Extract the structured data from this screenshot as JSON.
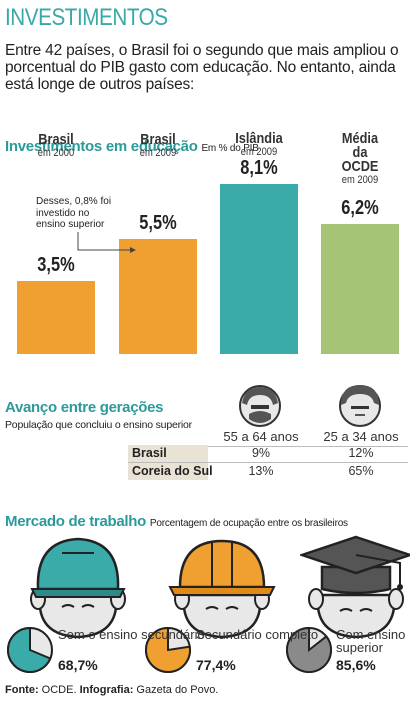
{
  "title": "INVESTIMENTOS",
  "intro": "Entre 42 países, o Brasil foi o segundo que mais ampliou o porcentual do PIB gasto com educação. No entanto, ainda está longe de outros países:",
  "invest": {
    "title": "Investimentos em educação",
    "subtitle": "Em % do PIB",
    "note": "Desses, 0,8% foi investido no ensino superior",
    "colors": [
      "#f0a030",
      "#f0a030",
      "#3aaba8",
      "#a6c476"
    ]
  },
  "chart_data": [
    {
      "type": "bar",
      "title": "Investimentos em educação",
      "subtitle": "Em % do PIB",
      "categories": [
        {
          "name": "Brasil",
          "sub": "em 2000"
        },
        {
          "name": "Brasil",
          "sub": "em 2009"
        },
        {
          "name": "Islândia",
          "sub": "em 2009"
        },
        {
          "name": "Média da OCDE",
          "sub": "em 2009"
        }
      ],
      "values": [
        3.5,
        5.5,
        8.1,
        6.2
      ],
      "labels": [
        "3,5%",
        "5,5%",
        "8,1%",
        "6,2%"
      ],
      "ylim": [
        0,
        8.1
      ]
    },
    {
      "type": "table",
      "title": "Avanço entre gerações",
      "subtitle": "População que concluiu o ensino superior",
      "columns": [
        "55 a 64 anos",
        "25 a 34 anos"
      ],
      "rows": [
        {
          "name": "Brasil",
          "values": [
            "9%",
            "12%"
          ]
        },
        {
          "name": "Coreia do Sul",
          "values": [
            "13%",
            "65%"
          ]
        }
      ]
    },
    {
      "type": "pie",
      "title": "Mercado de trabalho",
      "subtitle": "Porcentagem de ocupação entre os brasileiros",
      "items": [
        {
          "label": "Sem o ensino secundário",
          "value": 68.7,
          "text": "68,7%",
          "color": "#3aaba8"
        },
        {
          "label": "Secundário completo",
          "value": 77.4,
          "text": "77,4%",
          "color": "#f0a030"
        },
        {
          "label": "Com ensino superior",
          "value": 85.6,
          "text": "85,6%",
          "color": "#8a8a8a"
        }
      ]
    }
  ],
  "source": {
    "label": "Fonte:",
    "text": "OCDE.",
    "label2": "Infografia:",
    "text2": "Gazeta do Povo."
  }
}
